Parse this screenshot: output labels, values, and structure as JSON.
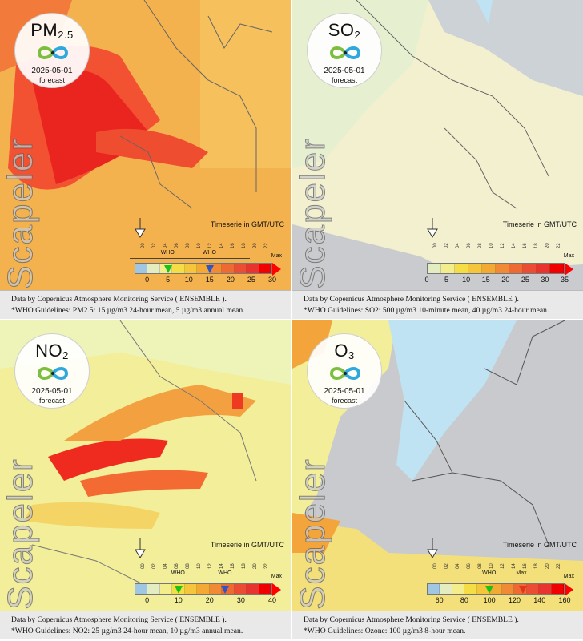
{
  "panels": [
    {
      "species_main": "PM",
      "species_sub": "2.5",
      "date": "2025-05-01",
      "forecast_label": "forecast",
      "brand": "Scapeler",
      "timeserie": "Timeserie in GMT/UTC",
      "hours": [
        "00",
        "02",
        "04",
        "06",
        "08",
        "10",
        "12",
        "14",
        "16",
        "18",
        "20",
        "22"
      ],
      "who_tags": [
        "WHO",
        "WHO"
      ],
      "max_label": "Max",
      "colors": [
        "#9fc7e4",
        "#e4ecc1",
        "#f3ed8c",
        "#f5de45",
        "#f5c63b",
        "#f3a934",
        "#f18a35",
        "#ee6a33",
        "#ea4d33",
        "#e8332e",
        "#f00000"
      ],
      "ticks": [
        "0",
        "5",
        "10",
        "15",
        "20",
        "25",
        "30"
      ],
      "who_markers": [
        5,
        15
      ],
      "marker_colors": [
        "#18c21b",
        "#2c55c8"
      ],
      "caption_line1": "Data by Copernicus Atmosphere Monitoring Service ( ENSEMBLE ).",
      "caption_line2": "*WHO Guidelines: PM2.5: 15 µg/m3 24-hour mean, 5 µg/m3 annual mean."
    },
    {
      "species_main": "SO",
      "species_sub": "2",
      "date": "2025-05-01",
      "forecast_label": "forecast",
      "brand": "Scapeler",
      "timeserie": "Timeserie in GMT/UTC",
      "hours": [
        "00",
        "02",
        "04",
        "06",
        "08",
        "10",
        "12",
        "14",
        "16",
        "18",
        "20",
        "22"
      ],
      "who_tags": [],
      "max_label": "Max",
      "colors": [
        "#e4ecc1",
        "#f3ed8c",
        "#f5de45",
        "#f5c63b",
        "#f3a934",
        "#f18a35",
        "#ee6a33",
        "#ea4d33",
        "#e8332e",
        "#f00000"
      ],
      "ticks": [
        "0",
        "5",
        "10",
        "15",
        "20",
        "25",
        "30",
        "35"
      ],
      "who_markers": [],
      "marker_colors": [],
      "caption_line1": "Data by Copernicus Atmosphere Monitoring Service ( ENSEMBLE ).",
      "caption_line2": "*WHO Guidelines: SO2: 500 µg/m3 10-minute mean, 40 µg/m3 24-hour mean."
    },
    {
      "species_main": "NO",
      "species_sub": "2",
      "date": "2025-05-01",
      "forecast_label": "forecast",
      "brand": "Scapeler",
      "timeserie": "Timeserie in GMT/UTC",
      "hours": [
        "00",
        "02",
        "04",
        "06",
        "08",
        "10",
        "12",
        "14",
        "16",
        "18",
        "20",
        "22"
      ],
      "who_tags": [
        "WHO",
        "WHO"
      ],
      "max_label": "Max",
      "colors": [
        "#9fc7e4",
        "#e4ecc1",
        "#f3ed8c",
        "#f5de45",
        "#f5c63b",
        "#f3a934",
        "#f18a35",
        "#ee6a33",
        "#ea4d33",
        "#e8332e",
        "#f00000"
      ],
      "ticks": [
        "0",
        "10",
        "20",
        "30",
        "40"
      ],
      "who_markers": [
        10,
        25
      ],
      "marker_colors": [
        "#18c21b",
        "#2c55c8"
      ],
      "caption_line1": "Data by Copernicus Atmosphere Monitoring Service ( ENSEMBLE ).",
      "caption_line2": "*WHO Guidelines: NO2: 25 µg/m3 24-hour mean, 10 µg/m3 annual mean."
    },
    {
      "species_main": "O",
      "species_sub": "3",
      "date": "2025-05-01",
      "forecast_label": "forecast",
      "brand": "Scapeler",
      "timeserie": "Timeserie in GMT/UTC",
      "hours": [
        "00",
        "02",
        "04",
        "06",
        "08",
        "10",
        "12",
        "14",
        "16",
        "18",
        "20",
        "22"
      ],
      "who_tags": [
        "WHO",
        "Max"
      ],
      "max_label": "Max",
      "colors": [
        "#9fc7e4",
        "#e4ecc1",
        "#f3ed8c",
        "#f5de45",
        "#f5c63b",
        "#f3a934",
        "#f18a35",
        "#ee6a33",
        "#ea4d33",
        "#e8332e",
        "#f00000"
      ],
      "ticks": [
        "60",
        "80",
        "100",
        "120",
        "140",
        "160"
      ],
      "who_markers": [
        100,
        127
      ],
      "marker_colors": [
        "#18c21b",
        "#e2331f"
      ],
      "caption_line1": "Data by Copernicus Atmosphere Monitoring Service ( ENSEMBLE ).",
      "caption_line2": "*WHO Guidelines: Ozone: 100 µg/m3 8-hour mean."
    }
  ]
}
